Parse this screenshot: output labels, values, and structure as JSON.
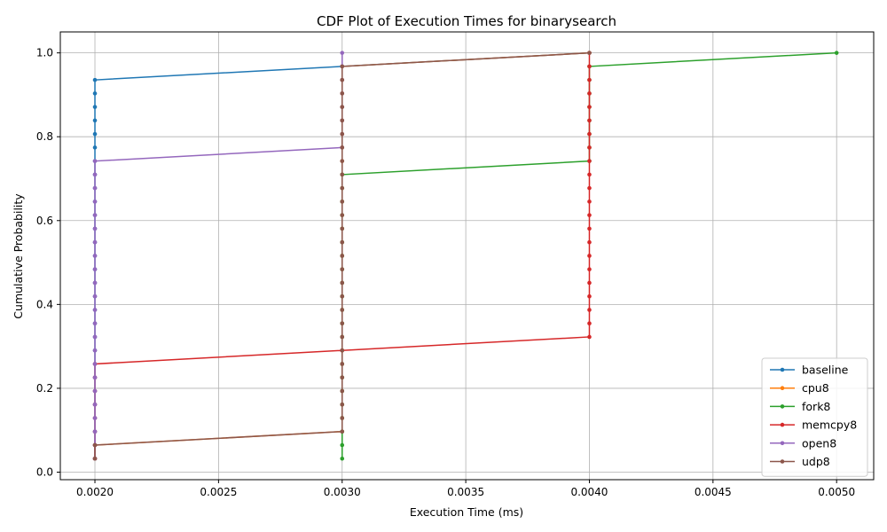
{
  "chart_data": {
    "type": "line",
    "title": "CDF Plot of Execution Times for binarysearch",
    "xlabel": "Execution Time (ms)",
    "ylabel": "Cumulative Probability",
    "xlim": [
      0.00186,
      0.00515
    ],
    "ylim": [
      -0.018,
      1.05
    ],
    "x_ticks": [
      0.002,
      0.0025,
      0.003,
      0.0035,
      0.004,
      0.0045,
      0.005
    ],
    "x_tick_labels": [
      "0.0020",
      "0.0025",
      "0.0030",
      "0.0035",
      "0.0040",
      "0.0045",
      "0.0050"
    ],
    "y_ticks": [
      0.0,
      0.2,
      0.4,
      0.6,
      0.8,
      1.0
    ],
    "y_tick_labels": [
      "0.0",
      "0.2",
      "0.4",
      "0.6",
      "0.8",
      "1.0"
    ],
    "grid": true,
    "legend_position": "lower-right",
    "n_samples": 31,
    "series": [
      {
        "name": "baseline",
        "color": "#1f77b4",
        "values": {
          "0.002": 29,
          "0.003": 1,
          "0.004": 1
        }
      },
      {
        "name": "cpu8",
        "color": "#ff7f0e",
        "values": {
          "0.002": 2,
          "0.003": 28,
          "0.004": 1
        }
      },
      {
        "name": "fork8",
        "color": "#2ca02c",
        "values": {
          "0.003": 22,
          "0.004": 8,
          "0.005": 1
        }
      },
      {
        "name": "memcpy8",
        "color": "#d62728",
        "values": {
          "0.002": 8,
          "0.003": 1,
          "0.004": 22
        }
      },
      {
        "name": "open8",
        "color": "#9467bd",
        "values": {
          "0.002": 23,
          "0.003": 8
        }
      },
      {
        "name": "udp8",
        "color": "#8c564b",
        "values": {
          "0.002": 2,
          "0.003": 28,
          "0.004": 1
        }
      }
    ]
  }
}
